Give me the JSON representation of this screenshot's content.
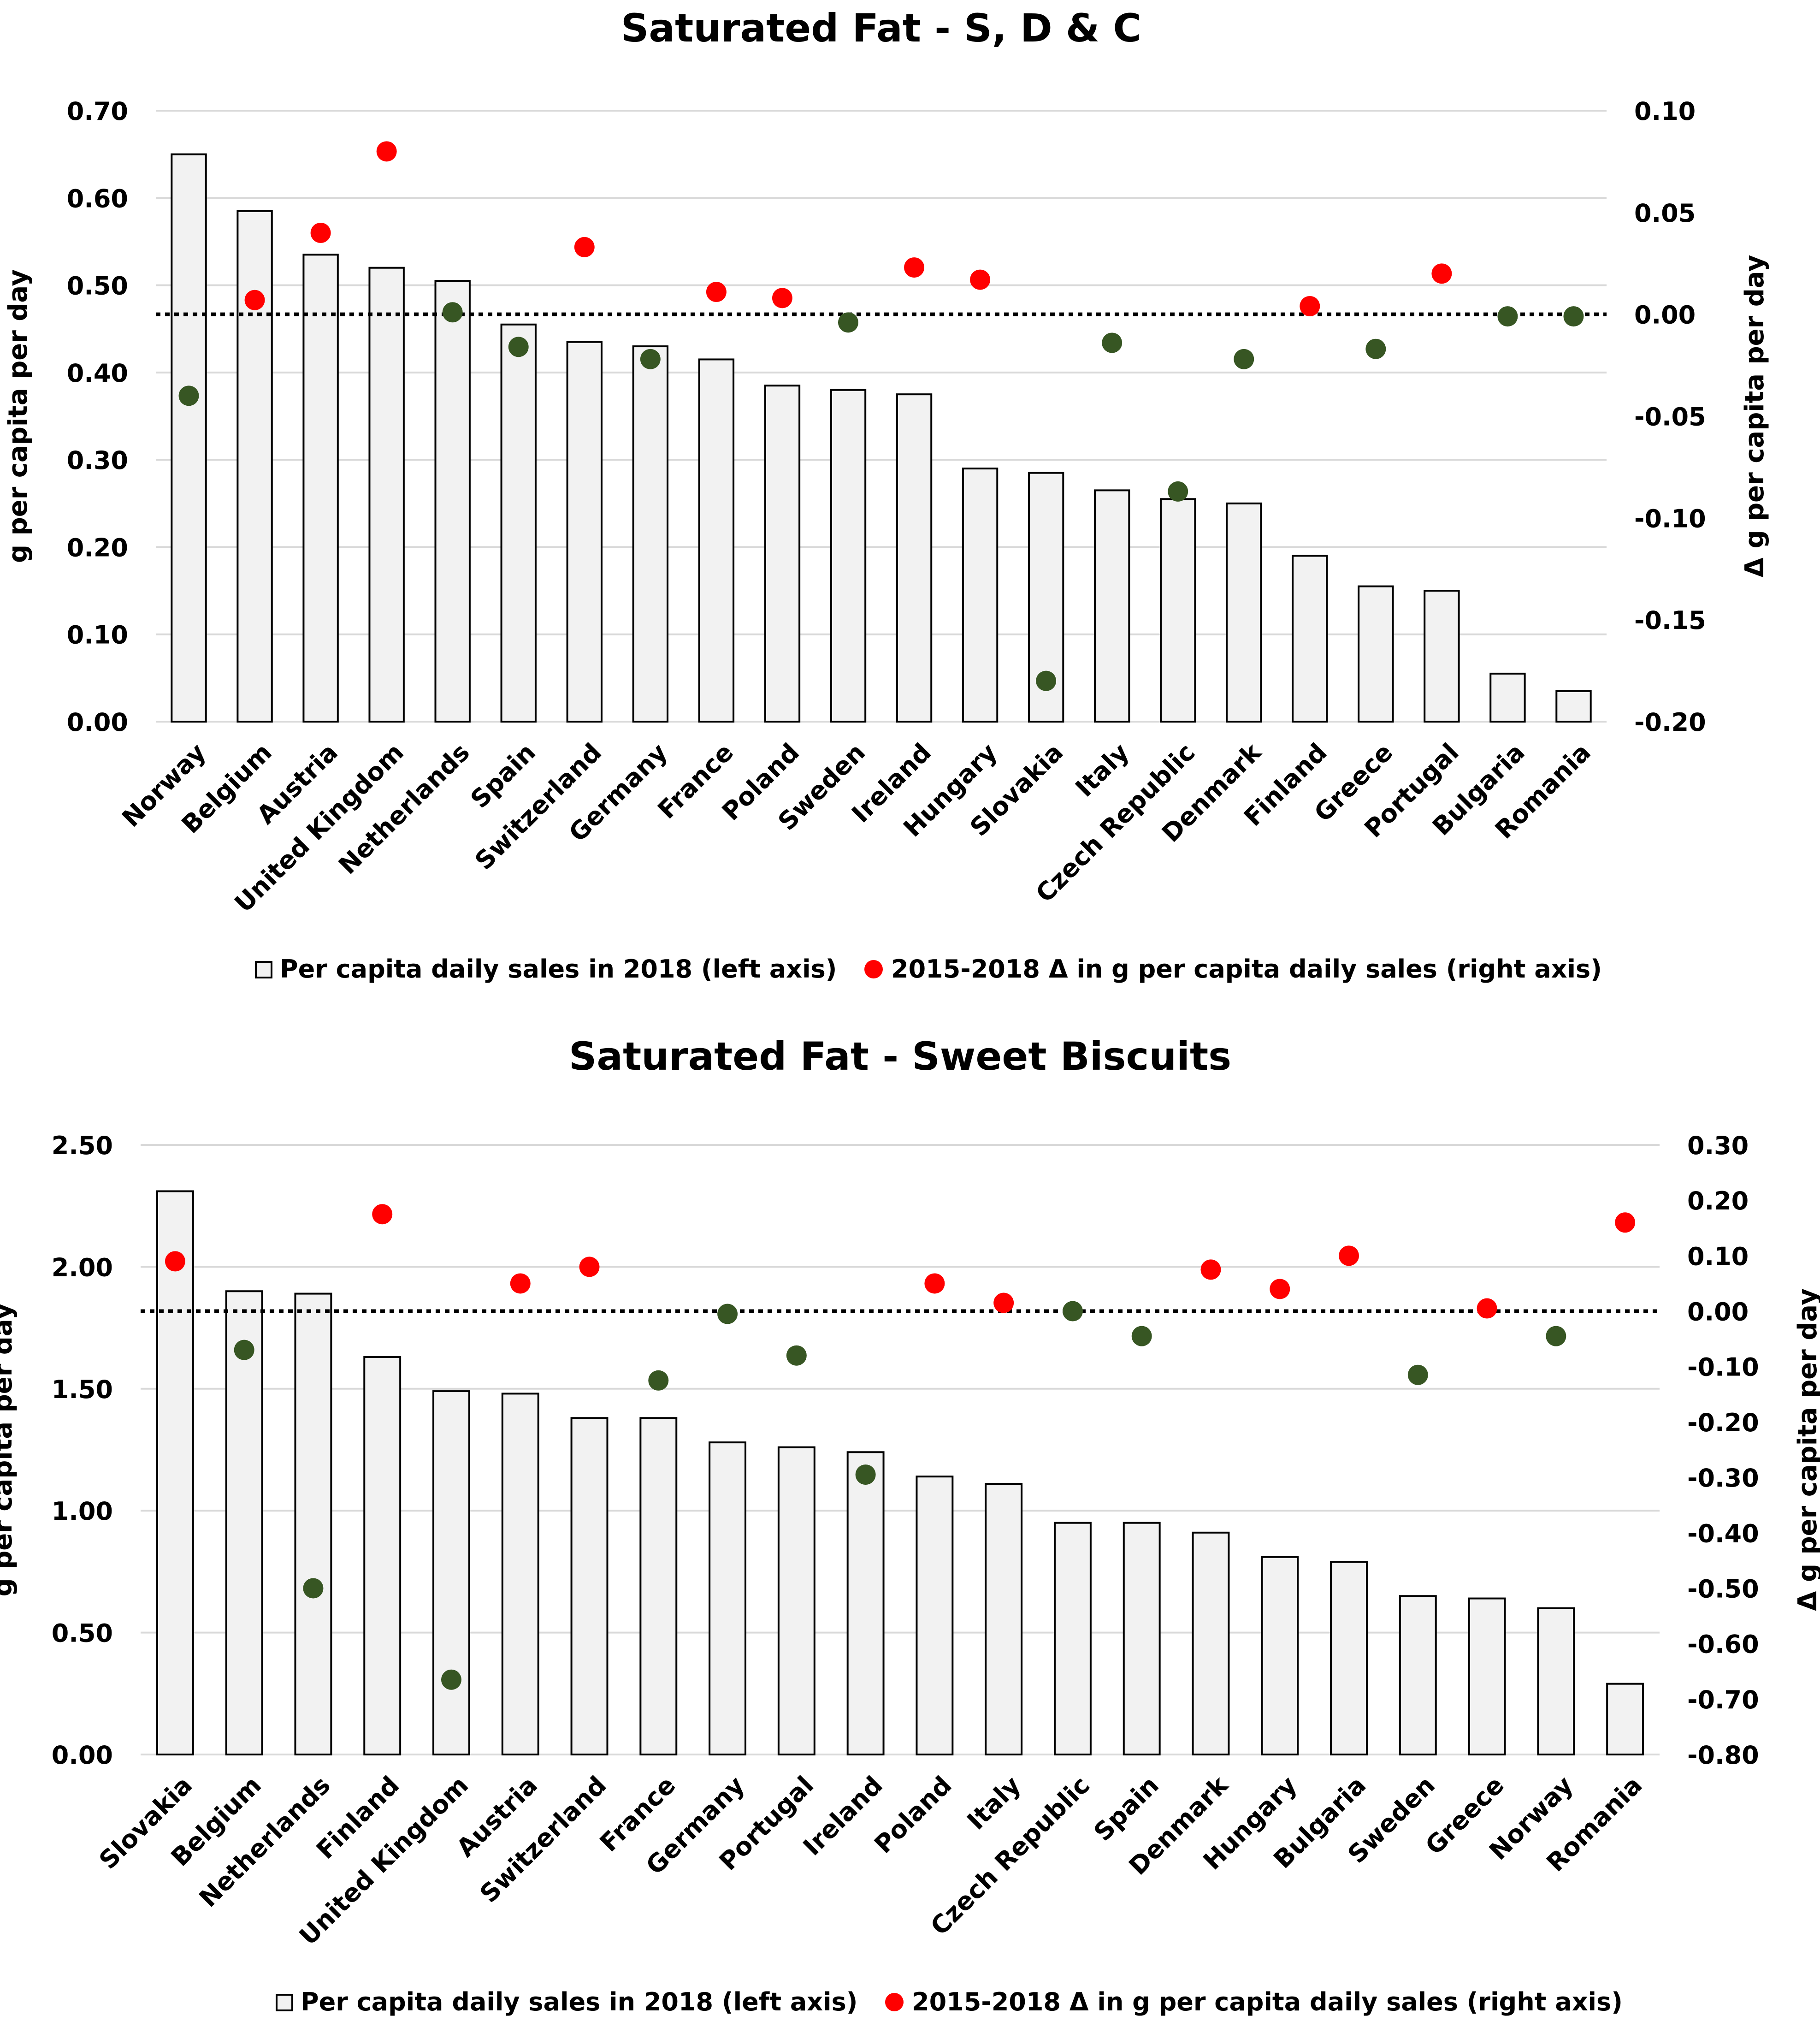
{
  "legend": {
    "bars_label": "Per capita daily sales in 2018 (left axis)",
    "dots_label": "2015-2018  Δ in g per capita daily sales (right axis)"
  },
  "colors": {
    "bar_fill": "#f2f2f2",
    "bar_stroke": "#000000",
    "increase": "#ff0000",
    "decrease": "#375623",
    "gridline": "#d9d9d9"
  },
  "chart_data": [
    {
      "type": "bar",
      "title": "Saturated Fat - S, D & C",
      "ylabel": "g per capita per day",
      "y2label": "Δ g per capita per day",
      "ylim": [
        0,
        0.7
      ],
      "y2lim": [
        -0.2,
        0.1
      ],
      "yticks": [
        "0.00",
        "0.10",
        "0.20",
        "0.30",
        "0.40",
        "0.50",
        "0.60",
        "0.70"
      ],
      "y2ticks": [
        "-0.20",
        "-0.15",
        "-0.10",
        "-0.05",
        "0.00",
        "0.05",
        "0.10"
      ],
      "categories": [
        "Norway",
        "Belgium",
        "Austria",
        "United Kingdom",
        "Netherlands",
        "Spain",
        "Switzerland",
        "Germany",
        "France",
        "Poland",
        "Sweden",
        "Ireland",
        "Hungary",
        "Slovakia",
        "Italy",
        "Czech Republic",
        "Denmark",
        "Finland",
        "Greece",
        "Portugal",
        "Bulgaria",
        "Romania"
      ],
      "series": [
        {
          "name": "Per capita daily sales in 2018 (left axis)",
          "axis": "left",
          "values": [
            0.65,
            0.585,
            0.535,
            0.52,
            0.505,
            0.455,
            0.435,
            0.43,
            0.415,
            0.385,
            0.38,
            0.375,
            0.29,
            0.285,
            0.265,
            0.255,
            0.25,
            0.19,
            0.155,
            0.15,
            0.055,
            0.035
          ]
        },
        {
          "name": "2015-2018  Δ in g per capita daily sales (right axis)",
          "axis": "right",
          "values": [
            -0.04,
            0.007,
            0.04,
            0.08,
            0.001,
            -0.016,
            0.033,
            -0.022,
            0.011,
            0.008,
            -0.004,
            0.023,
            0.017,
            -0.18,
            -0.014,
            -0.087,
            -0.022,
            0.004,
            -0.017,
            0.02,
            -0.001,
            -0.001
          ]
        }
      ]
    },
    {
      "type": "bar",
      "title": "Saturated Fat - Sweet Biscuits",
      "ylabel": "g per capita per day",
      "y2label": "Δ g per capita per day",
      "ylim": [
        0,
        2.5
      ],
      "y2lim": [
        -0.8,
        0.3
      ],
      "yticks": [
        "0.00",
        "0.50",
        "1.00",
        "1.50",
        "2.00",
        "2.50"
      ],
      "y2ticks": [
        "-0.80",
        "-0.70",
        "-0.60",
        "-0.50",
        "-0.40",
        "-0.30",
        "-0.20",
        "-0.10",
        "0.00",
        "0.10",
        "0.20",
        "0.30"
      ],
      "categories": [
        "Slovakia",
        "Belgium",
        "Netherlands",
        "Finland",
        "United Kingdom",
        "Austria",
        "Switzerland",
        "France",
        "Germany",
        "Portugal",
        "Ireland",
        "Poland",
        "Italy",
        "Czech Republic",
        "Spain",
        "Denmark",
        "Hungary",
        "Bulgaria",
        "Sweden",
        "Greece",
        "Norway",
        "Romania"
      ],
      "series": [
        {
          "name": "Per capita daily sales in 2018 (left axis)",
          "axis": "left",
          "values": [
            2.31,
            1.9,
            1.89,
            1.63,
            1.49,
            1.48,
            1.38,
            1.38,
            1.28,
            1.26,
            1.24,
            1.14,
            1.11,
            0.95,
            0.95,
            0.91,
            0.81,
            0.79,
            0.65,
            0.64,
            0.6,
            0.29
          ]
        },
        {
          "name": "2015-2018  Δ in g per capita daily sales (right axis)",
          "axis": "right",
          "values": [
            0.09,
            -0.07,
            -0.5,
            0.175,
            -0.665,
            0.05,
            0.08,
            -0.125,
            -0.005,
            -0.08,
            -0.295,
            0.05,
            0.015,
            0.0,
            -0.045,
            0.075,
            0.04,
            0.1,
            -0.115,
            0.005,
            -0.045,
            0.16
          ]
        }
      ]
    }
  ]
}
